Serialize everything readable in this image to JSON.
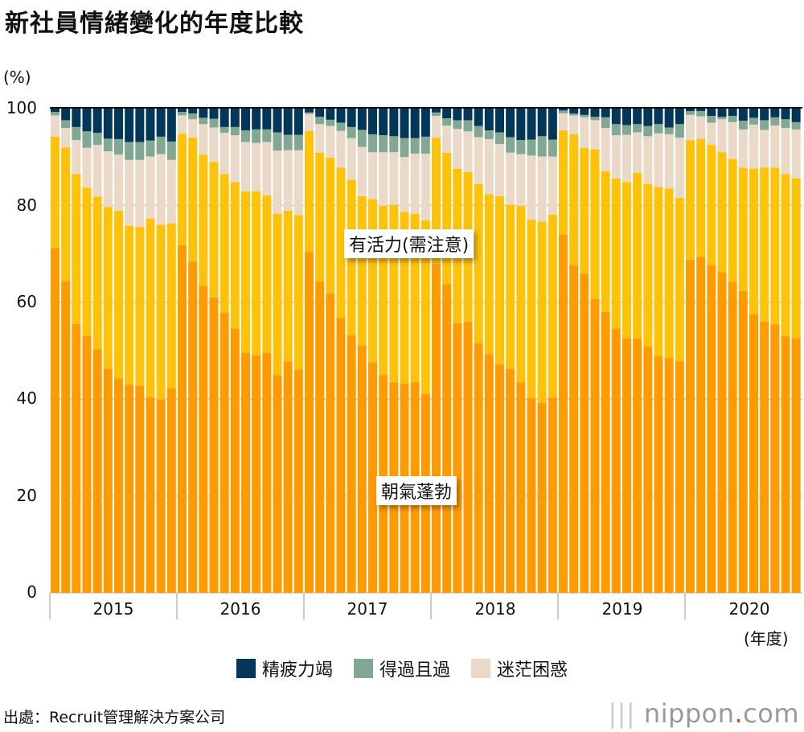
{
  "title": "新社員情緒變化的年度比較",
  "source": "出處：Recruit管理解決方案公司",
  "logo": {
    "text": "nippon",
    "suffix": "com"
  },
  "colors": {
    "朝氣蓬勃": "#ff9b00",
    "有活力(需注意)": "#ffc20a",
    "迷茫困惑": "#ead9c6",
    "得過且過": "#82a894",
    "精疲力竭": "#03375a"
  },
  "chart_data": {
    "type": "bar",
    "stacked": true,
    "title": "新社員情緒變化的年度比較",
    "ylabel": "(%)",
    "xlabel": "(年度)",
    "ylim": [
      0,
      100
    ],
    "yticks": [
      "0",
      "20",
      "40",
      "60",
      "80",
      "100"
    ],
    "years": [
      "2015",
      "2016",
      "2017",
      "2018",
      "2019",
      "2020"
    ],
    "bars_per_year": [
      12,
      12,
      12,
      12,
      12,
      11
    ],
    "annotations": [
      "有活力(需注意)",
      "朝氣蓬勃"
    ],
    "legend": [
      "精疲力竭",
      "得過且過",
      "迷茫困惑"
    ],
    "legend_position": "bottom",
    "series": [
      {
        "name": "朝氣蓬勃",
        "values": [
          71.2,
          64.4,
          55.5,
          53.0,
          50.3,
          46.3,
          44.3,
          43.0,
          42.8,
          40.5,
          39.9,
          42.3,
          71.8,
          68.4,
          63.4,
          61.0,
          57.8,
          54.6,
          49.5,
          49.0,
          49.5,
          45.0,
          47.8,
          46.1,
          70.4,
          64.3,
          61.8,
          56.8,
          53.2,
          51.1,
          47.6,
          45.0,
          43.5,
          43.2,
          43.5,
          41.1,
          67.9,
          63.7,
          55.7,
          56.0,
          51.5,
          49.3,
          47.2,
          46.3,
          43.5,
          40.2,
          39.2,
          40.3,
          74.0,
          67.7,
          65.9,
          60.7,
          58.0,
          54.6,
          52.6,
          52.5,
          50.8,
          48.9,
          48.5,
          47.8,
          68.8,
          69.4,
          67.7,
          66.2,
          64.2,
          62.3,
          57.6,
          56.0,
          55.4,
          53.0,
          52.6
        ]
      },
      {
        "name": "有活力(需注意)",
        "values": [
          23.0,
          27.6,
          31.0,
          30.7,
          31.5,
          33.4,
          34.6,
          32.8,
          32.8,
          36.8,
          36.1,
          34.0,
          23.0,
          25.6,
          27.1,
          28.0,
          28.7,
          30.2,
          33.4,
          33.9,
          32.6,
          33.3,
          31.1,
          31.9,
          25.0,
          26.6,
          28.1,
          31.0,
          32.1,
          30.8,
          33.7,
          34.9,
          36.6,
          35.5,
          34.8,
          35.8,
          26.1,
          27.2,
          31.9,
          30.9,
          32.9,
          33.0,
          34.7,
          33.9,
          36.4,
          36.9,
          37.5,
          37.8,
          21.5,
          27.0,
          26.0,
          30.9,
          29.1,
          31.0,
          32.2,
          34.2,
          33.7,
          34.9,
          35.0,
          33.8,
          24.7,
          24.4,
          24.8,
          24.8,
          25.4,
          25.5,
          30.0,
          31.8,
          32.4,
          33.5,
          33.0
        ]
      },
      {
        "name": "迷茫困惑",
        "values": [
          4.4,
          4.0,
          7.0,
          8.2,
          10.7,
          11.5,
          11.6,
          13.6,
          13.8,
          12.8,
          14.6,
          13.1,
          3.8,
          3.8,
          6.3,
          7.1,
          8.5,
          9.7,
          10.2,
          10.0,
          11.0,
          13.0,
          12.5,
          13.4,
          3.5,
          5.9,
          6.5,
          7.6,
          8.6,
          10.2,
          9.7,
          11.1,
          10.9,
          11.3,
          12.4,
          13.8,
          4.5,
          5.6,
          8.2,
          8.4,
          9.7,
          11.4,
          10.8,
          10.7,
          10.7,
          13.2,
          13.4,
          12.0,
          3.5,
          3.9,
          6.3,
          6.0,
          8.9,
          8.9,
          9.8,
          8.4,
          9.8,
          11.1,
          11.2,
          12.4,
          5.2,
          4.6,
          4.6,
          6.8,
          7.6,
          7.9,
          9.1,
          7.8,
          8.7,
          9.5,
          10.1
        ]
      },
      {
        "name": "得過且過",
        "values": [
          0.7,
          1.6,
          2.7,
          3.4,
          2.5,
          2.6,
          3.2,
          3.7,
          3.7,
          3.3,
          3.6,
          3.8,
          0.7,
          1.2,
          1.3,
          1.8,
          1.2,
          1.7,
          2.4,
          2.8,
          2.6,
          3.8,
          3.2,
          3.2,
          0.3,
          1.5,
          1.3,
          1.7,
          2.3,
          3.5,
          3.7,
          3.5,
          3.3,
          3.9,
          3.2,
          3.5,
          0.7,
          1.5,
          1.8,
          2.3,
          2.3,
          1.8,
          2.4,
          3.2,
          2.9,
          3.3,
          4.2,
          3.5,
          0.6,
          0.4,
          0.5,
          0.7,
          2.2,
          2.3,
          2.0,
          1.7,
          2.1,
          1.9,
          1.4,
          2.8,
          0.8,
          1.1,
          1.4,
          0.5,
          1.3,
          1.8,
          1.4,
          2.0,
          1.7,
          1.8,
          1.5
        ]
      },
      {
        "name": "精疲力竭",
        "values": [
          0.7,
          2.4,
          3.8,
          4.7,
          5.0,
          6.2,
          6.3,
          6.9,
          6.9,
          6.6,
          5.8,
          6.8,
          0.7,
          1.0,
          1.9,
          2.1,
          3.8,
          3.8,
          4.5,
          4.3,
          4.3,
          4.9,
          5.4,
          5.4,
          0.8,
          1.7,
          2.3,
          2.9,
          3.8,
          4.4,
          5.3,
          5.5,
          5.7,
          6.1,
          6.1,
          5.8,
          0.8,
          2.0,
          2.4,
          2.4,
          3.6,
          4.5,
          4.9,
          5.9,
          6.5,
          6.4,
          5.7,
          6.4,
          0.4,
          1.0,
          1.3,
          1.7,
          1.8,
          3.2,
          3.4,
          3.2,
          3.6,
          3.2,
          3.9,
          3.2,
          0.5,
          0.5,
          1.5,
          1.7,
          1.5,
          2.5,
          1.9,
          2.4,
          1.8,
          2.2,
          2.8
        ]
      }
    ]
  }
}
